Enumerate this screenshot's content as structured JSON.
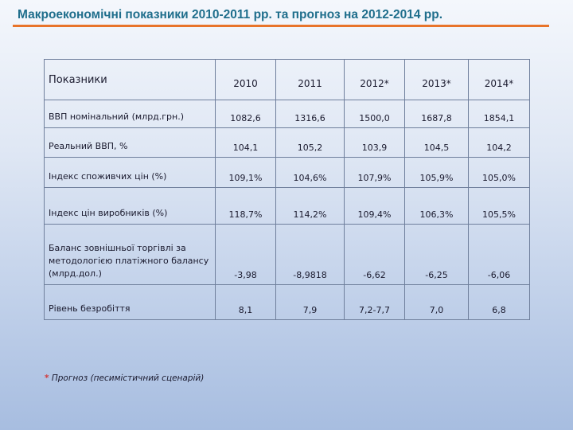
{
  "title": "Макроекономічні показники 2010-2011 рр. та прогноз на 2012-2014 рр.",
  "table": {
    "headers": [
      "Показники",
      "2010",
      "2011",
      "2012*",
      "2013*",
      "2014*"
    ],
    "rows": [
      {
        "label": "ВВП номінальний (млрд.грн.)",
        "values": [
          "1082,6",
          "1316,6",
          "1500,0",
          "1687,8",
          "1854,1"
        ]
      },
      {
        "label": "Реальний ВВП, %",
        "values": [
          "104,1",
          "105,2",
          "103,9",
          "104,5",
          "104,2"
        ]
      },
      {
        "label": "Індекс споживчих цін (%)",
        "values": [
          "109,1%",
          "104,6%",
          "107,9%",
          "105,9%",
          "105,0%"
        ]
      },
      {
        "label": "Індекс цін виробників (%)",
        "values": [
          "118,7%",
          "114,2%",
          "109,4%",
          "106,3%",
          "105,5%"
        ]
      },
      {
        "label": "Баланс зовнішньої торгівлі за методологією платіжного балансу (млрд.дол.)",
        "values": [
          "-3,98",
          "-8,9818",
          "-6,62",
          "-6,25",
          "-6,06"
        ]
      },
      {
        "label": "Рівень безробіття",
        "values": [
          "8,1",
          "7,9",
          "7,2-7,7",
          "7,0",
          "6,8"
        ]
      }
    ]
  },
  "footnote": {
    "marker": "*",
    "text": " Прогноз (песимістичний сценарій)"
  }
}
